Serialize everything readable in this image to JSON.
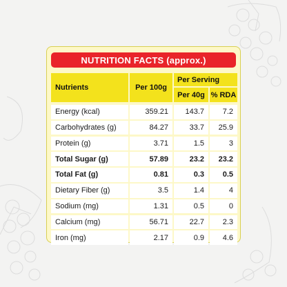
{
  "title": "NUTRITION FACTS (approx.)",
  "headers": {
    "nutrients": "Nutrients",
    "per100": "Per 100g",
    "perServing": "Per Serving",
    "per40": "Per 40g",
    "rda": "% RDA"
  },
  "rows": [
    {
      "name": "Energy (kcal)",
      "per100": "359.21",
      "per40": "143.7",
      "rda": "7.2",
      "bold": false
    },
    {
      "name": "Carbohydrates (g)",
      "per100": "84.27",
      "per40": "33.7",
      "rda": "25.9",
      "bold": false
    },
    {
      "name": "Protein (g)",
      "per100": "3.71",
      "per40": "1.5",
      "rda": "3",
      "bold": false
    },
    {
      "name": "Total Sugar (g)",
      "per100": "57.89",
      "per40": "23.2",
      "rda": "23.2",
      "bold": true
    },
    {
      "name": "Total Fat (g)",
      "per100": "0.81",
      "per40": "0.3",
      "rda": "0.5",
      "bold": true
    },
    {
      "name": "Dietary Fiber (g)",
      "per100": "3.5",
      "per40": "1.4",
      "rda": "4",
      "bold": false
    },
    {
      "name": "Sodium (mg)",
      "per100": "1.31",
      "per40": "0.5",
      "rda": "0",
      "bold": false
    },
    {
      "name": "Calcium (mg)",
      "per100": "56.71",
      "per40": "22.7",
      "rda": "2.3",
      "bold": false
    },
    {
      "name": "Iron (mg)",
      "per100": "2.17",
      "per40": "0.9",
      "rda": "4.6",
      "bold": false
    }
  ],
  "colors": {
    "titleBar": "#e9242a",
    "header": "#f3e21c",
    "card": "#fdf8c8",
    "cell": "#ffffff"
  }
}
